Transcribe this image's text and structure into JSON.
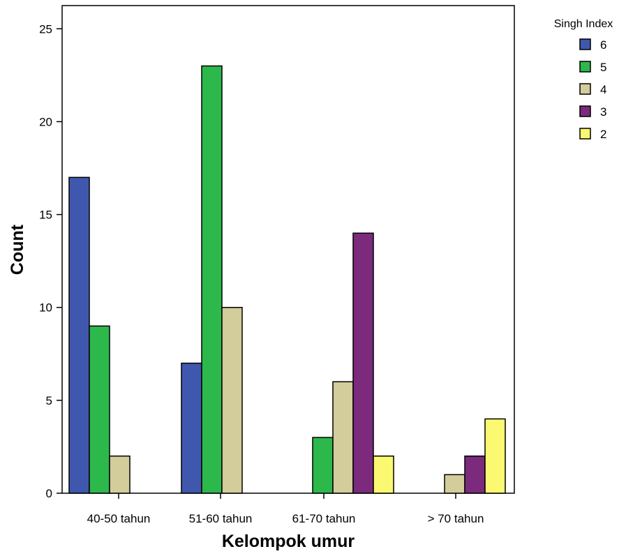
{
  "chart_data": {
    "type": "bar",
    "xlabel": "Kelompok umur",
    "ylabel": "Count",
    "categories": [
      "40-50 tahun",
      "51-60 tahun",
      "61-70 tahun",
      "> 70 tahun"
    ],
    "ylim": [
      0,
      26
    ],
    "yticks": [
      "0",
      "5",
      "10",
      "15",
      "20",
      "25"
    ],
    "legend": {
      "title": "Singh Index",
      "position": "top-right"
    },
    "grid": false,
    "series": [
      {
        "name": "6",
        "color": "#3f58ae",
        "values": [
          17,
          7,
          0,
          0
        ]
      },
      {
        "name": "5",
        "color": "#2db84b",
        "values": [
          9,
          23,
          3,
          0
        ]
      },
      {
        "name": "4",
        "color": "#d3cc9b",
        "values": [
          2,
          10,
          6,
          1
        ]
      },
      {
        "name": "3",
        "color": "#7b2a7c",
        "values": [
          0,
          0,
          14,
          2
        ]
      },
      {
        "name": "2",
        "color": "#fbf871",
        "values": [
          0,
          0,
          2,
          4
        ]
      }
    ]
  }
}
